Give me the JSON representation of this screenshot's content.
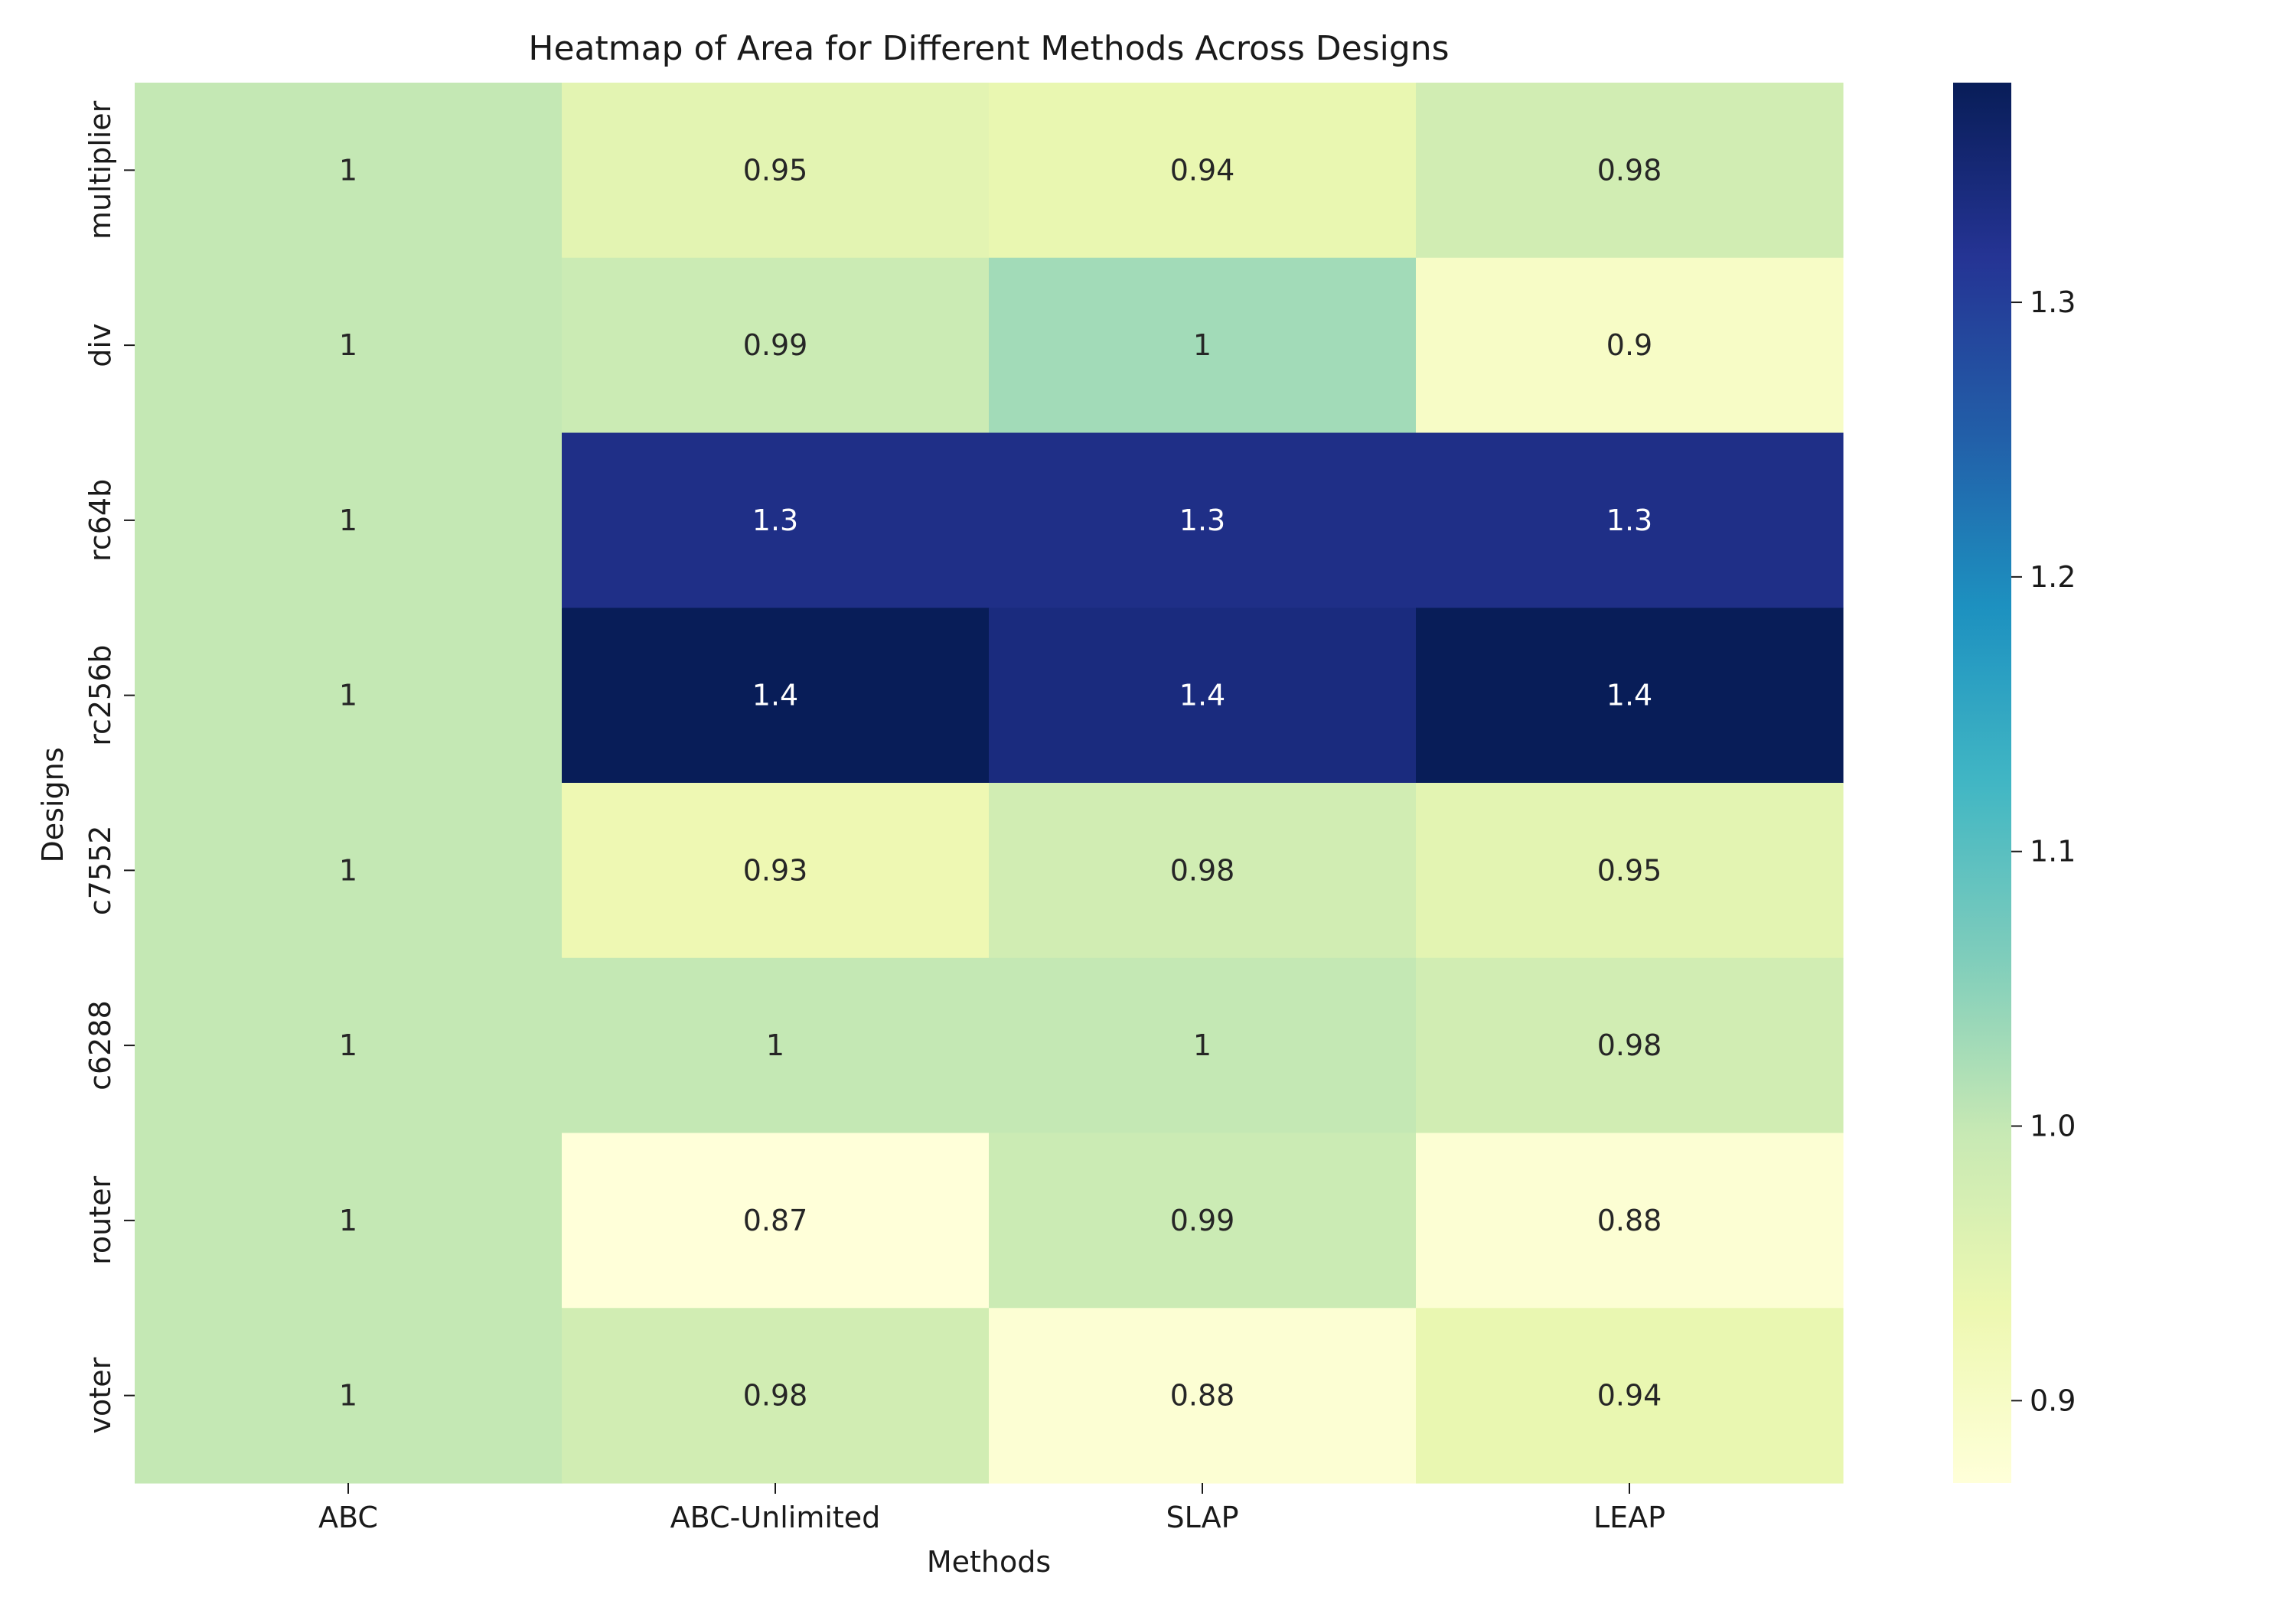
{
  "chart_data": {
    "type": "heatmap",
    "title": "Heatmap of Area for Different Methods Across Designs",
    "xlabel": "Methods",
    "ylabel": "Designs",
    "x_categories": [
      "ABC",
      "ABC-Unlimited",
      "SLAP",
      "LEAP"
    ],
    "y_categories": [
      "multiplier",
      "div",
      "rc64b",
      "rc256b",
      "c7552",
      "c6288",
      "router",
      "voter"
    ],
    "values": [
      [
        1.0,
        0.95,
        0.94,
        0.98
      ],
      [
        1.0,
        0.99,
        1.03,
        0.9
      ],
      [
        1.0,
        1.33,
        1.33,
        1.33
      ],
      [
        1.0,
        1.38,
        1.34,
        1.38
      ],
      [
        1.0,
        0.93,
        0.98,
        0.95
      ],
      [
        1.0,
        1.0,
        1.0,
        0.98
      ],
      [
        1.0,
        0.87,
        0.99,
        0.88
      ],
      [
        1.0,
        0.98,
        0.88,
        0.94
      ]
    ],
    "annotations": [
      [
        "1",
        "0.95",
        "0.94",
        "0.98"
      ],
      [
        "1",
        "0.99",
        "1",
        "0.9"
      ],
      [
        "1",
        "1.3",
        "1.3",
        "1.3"
      ],
      [
        "1",
        "1.4",
        "1.4",
        "1.4"
      ],
      [
        "1",
        "0.93",
        "0.98",
        "0.95"
      ],
      [
        "1",
        "1",
        "1",
        "0.98"
      ],
      [
        "1",
        "0.87",
        "0.99",
        "0.88"
      ],
      [
        "1",
        "0.98",
        "0.88",
        "0.94"
      ]
    ],
    "colorbar": {
      "colormap": "YlGnBu",
      "range": [
        0.87,
        1.38
      ],
      "ticks": [
        0.9,
        1.0,
        1.1,
        1.2,
        1.3
      ],
      "tick_labels": [
        "0.9",
        "1.0",
        "1.1",
        "1.2",
        "1.3"
      ]
    },
    "grid": false
  }
}
